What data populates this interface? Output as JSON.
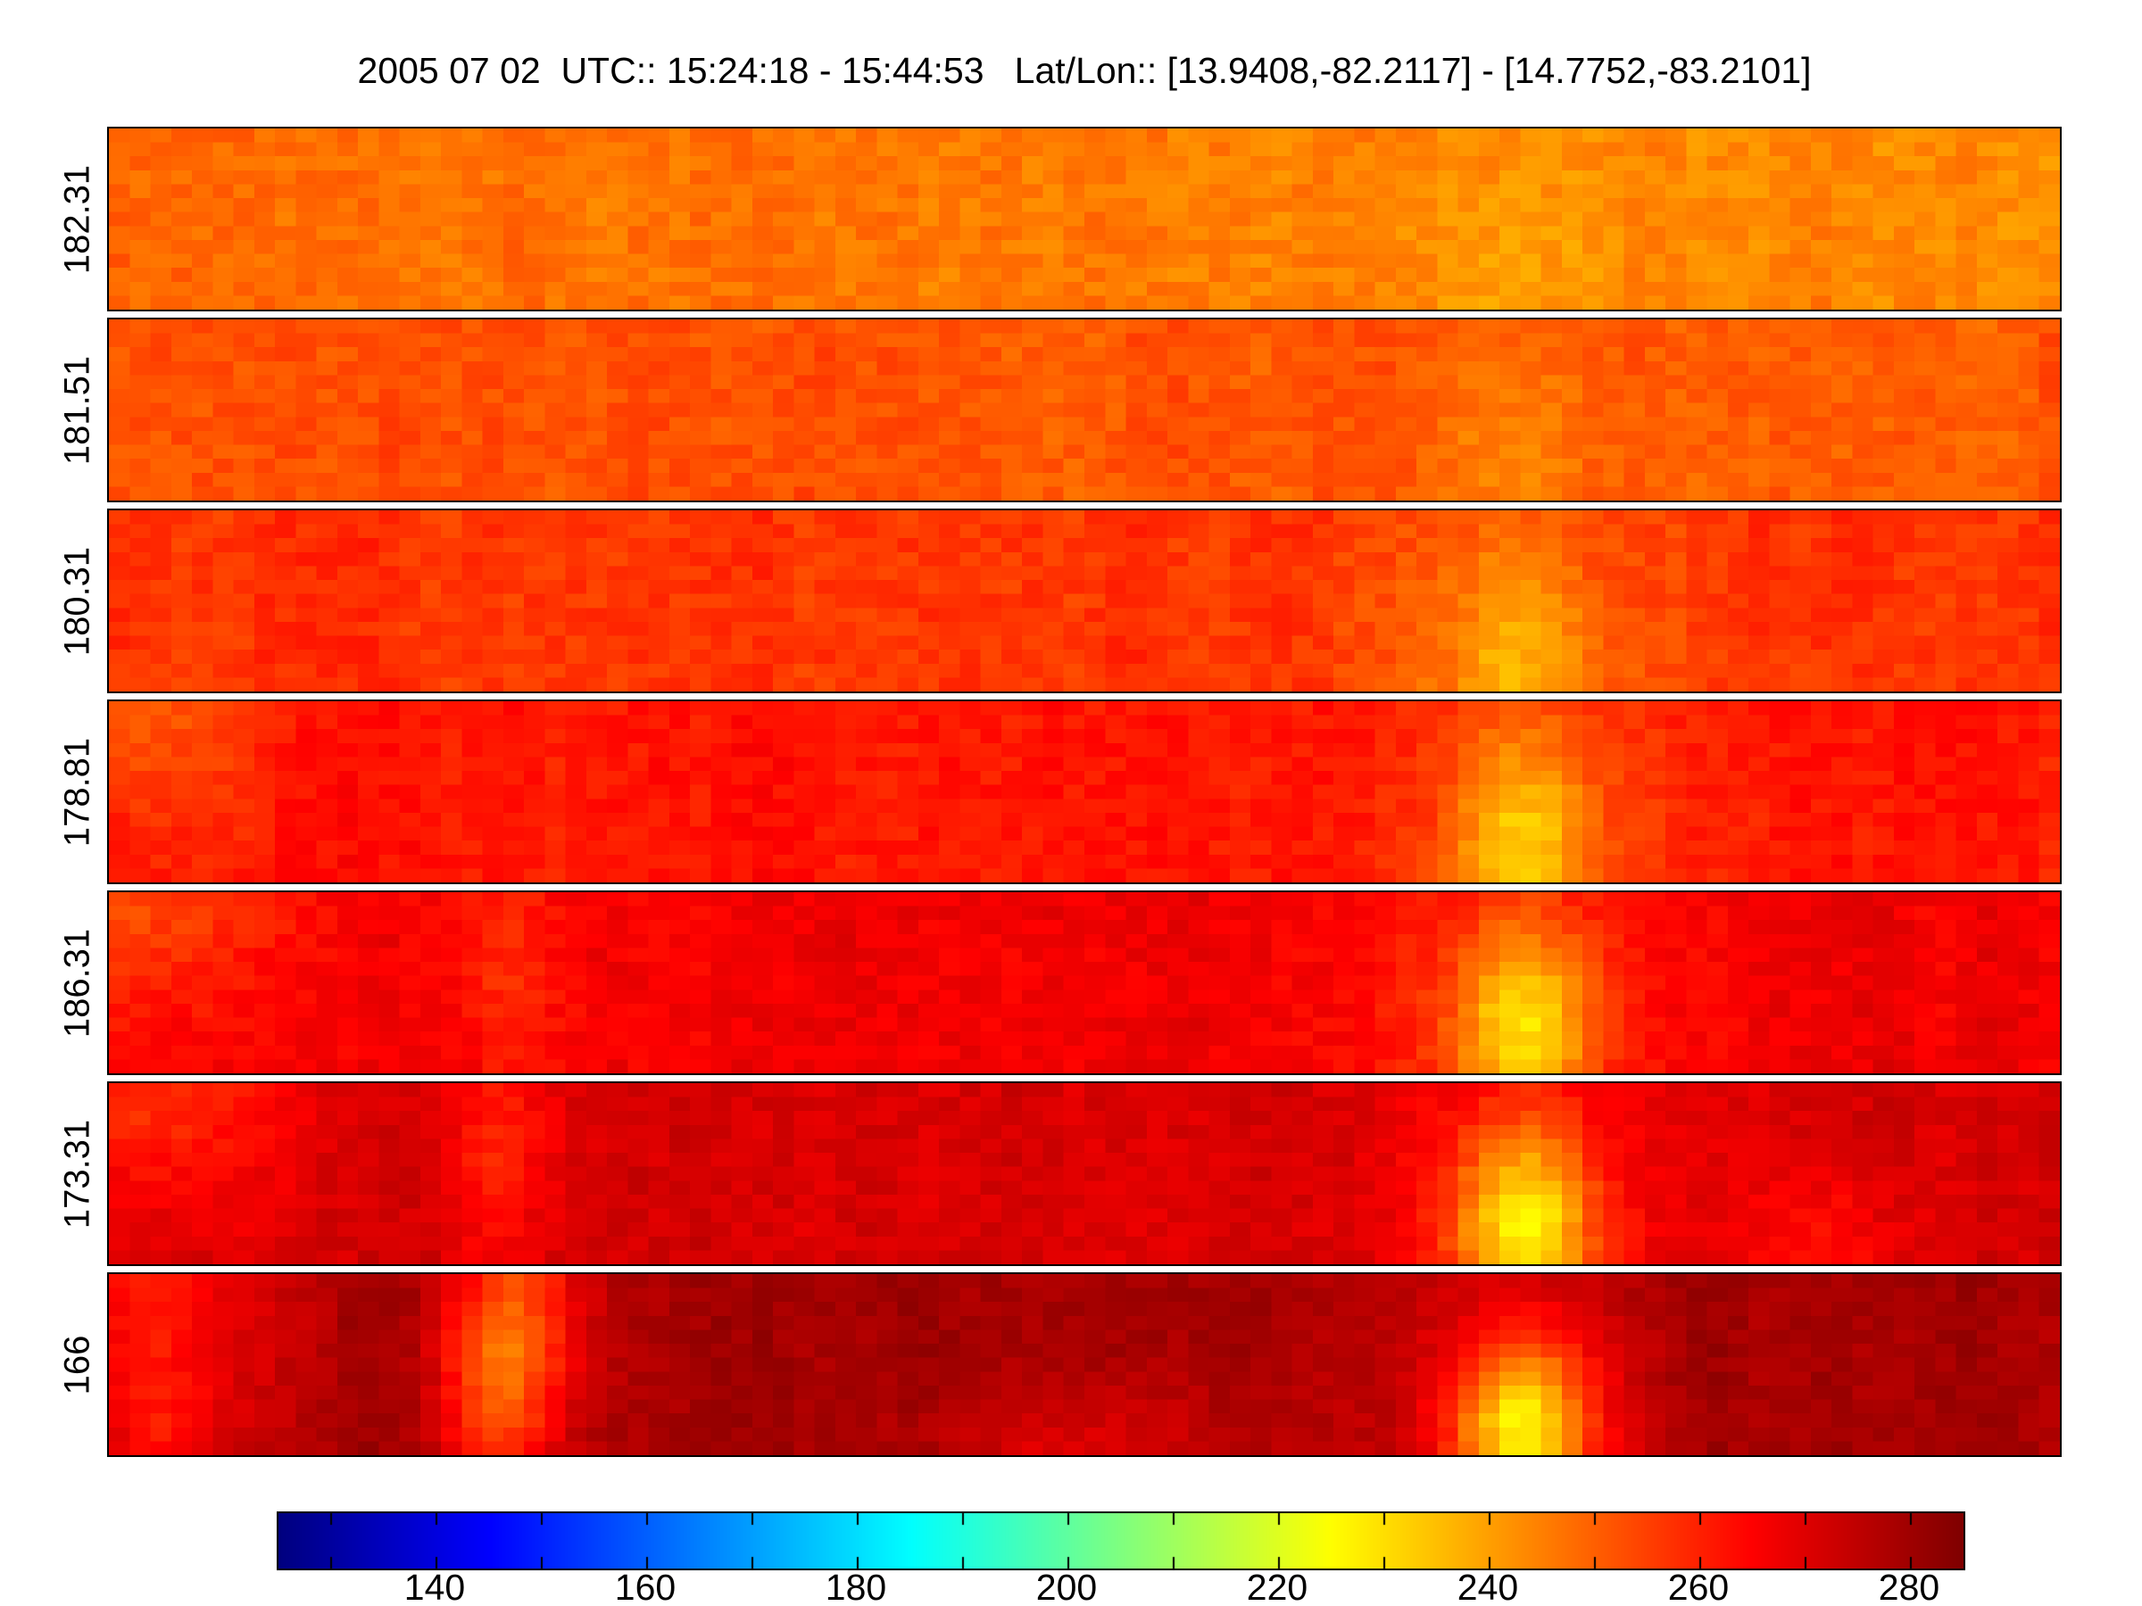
{
  "chart_data": {
    "type": "heatmap",
    "title": "2005 07 02  UTC:: 15:24:18 - 15:44:53   Lat/Lon:: [13.9408,-82.2117] - [14.7752,-83.2101]",
    "colormap": "jet",
    "colorbar_range": [
      125,
      285
    ],
    "colorbar_ticks": [
      140,
      160,
      180,
      200,
      220,
      240,
      260,
      280
    ],
    "colorbar_minor_tick_step": 10,
    "y_axis_labels": [
      "182.31",
      "181.51",
      "180.31",
      "178.81",
      "186.31",
      "173.31",
      "166"
    ],
    "grid": {
      "cols": 94,
      "rows": 13
    },
    "strips": [
      {
        "label": "182.31",
        "base": 246,
        "noise": 3.2,
        "tilt": -2.5,
        "features": [
          {
            "x": 0.72,
            "y": 0.85,
            "rx": 0.035,
            "ry": 0.55,
            "d": 5
          }
        ]
      },
      {
        "label": "181.51",
        "base": 252,
        "noise": 3.2,
        "tilt": -1.5,
        "features": [
          {
            "x": 0.72,
            "y": 0.8,
            "rx": 0.035,
            "ry": 0.55,
            "d": 7
          }
        ]
      },
      {
        "label": "180.31",
        "base": 257,
        "noise": 3.2,
        "tilt": 0,
        "features": [
          {
            "x": 0.72,
            "y": 0.85,
            "rx": 0.03,
            "ry": 0.5,
            "d": 14
          },
          {
            "x": 0.72,
            "y": 0.8,
            "rx": 0.07,
            "ry": 0.8,
            "d": 5
          }
        ]
      },
      {
        "label": "178.81",
        "base": 262,
        "noise": 3.0,
        "tilt": 0,
        "features": [
          {
            "x": 0.725,
            "y": 0.8,
            "rx": 0.025,
            "ry": 0.45,
            "d": 22
          },
          {
            "x": 0.725,
            "y": 0.8,
            "rx": 0.06,
            "ry": 0.9,
            "d": 6
          },
          {
            "x": 0.01,
            "y": 0.05,
            "rx": 0.045,
            "ry": 0.4,
            "d": 10
          }
        ]
      },
      {
        "label": "186.31",
        "base": 267,
        "noise": 3.0,
        "tilt": 0,
        "features": [
          {
            "x": 0.725,
            "y": 0.75,
            "rx": 0.025,
            "ry": 0.4,
            "d": 30
          },
          {
            "x": 0.725,
            "y": 0.75,
            "rx": 0.06,
            "ry": 0.9,
            "d": 7
          },
          {
            "x": 0.01,
            "y": 0.05,
            "rx": 0.05,
            "ry": 0.45,
            "d": 13
          },
          {
            "x": 0.205,
            "y": 0.35,
            "rx": 0.018,
            "ry": 0.5,
            "d": 7
          }
        ]
      },
      {
        "label": "173.31",
        "base": 272,
        "noise": 2.8,
        "tilt": 0,
        "features": [
          {
            "x": 0.725,
            "y": 0.8,
            "rx": 0.025,
            "ry": 0.4,
            "d": 38
          },
          {
            "x": 0.725,
            "y": 0.75,
            "rx": 0.06,
            "ry": 0.9,
            "d": 8
          },
          {
            "x": 0.01,
            "y": 0.05,
            "rx": 0.06,
            "ry": 0.5,
            "d": 15
          },
          {
            "x": 0.2,
            "y": 0.3,
            "rx": 0.02,
            "ry": 0.55,
            "d": 12
          },
          {
            "x": 0.88,
            "y": 0.9,
            "rx": 0.03,
            "ry": 0.3,
            "d": 8
          }
        ]
      },
      {
        "label": "166",
        "base": 280,
        "noise": 2.5,
        "tilt": 0,
        "features": [
          {
            "x": 0.725,
            "y": 0.85,
            "rx": 0.025,
            "ry": 0.35,
            "d": 46
          },
          {
            "x": 0.725,
            "y": 0.8,
            "rx": 0.055,
            "ry": 0.8,
            "d": 8
          },
          {
            "x": 0.015,
            "y": 0.1,
            "rx": 0.05,
            "ry": 0.5,
            "d": 17
          },
          {
            "x": 0.21,
            "y": 0.25,
            "rx": 0.025,
            "ry": 0.55,
            "d": 25
          },
          {
            "x": 0.195,
            "y": 0.7,
            "rx": 0.02,
            "ry": 0.4,
            "d": 15
          },
          {
            "x": 0.03,
            "y": 0.9,
            "rx": 0.03,
            "ry": 0.3,
            "d": 12
          },
          {
            "x": 0.5,
            "y": 1.0,
            "rx": 0.06,
            "ry": 0.3,
            "d": 9
          }
        ]
      }
    ]
  }
}
